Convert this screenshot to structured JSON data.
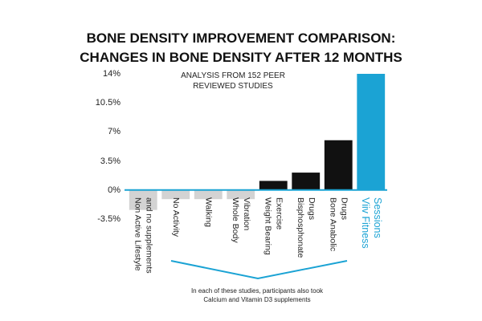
{
  "chart_data": {
    "type": "bar",
    "title": "BONE DENSITY IMPROVEMENT COMPARISON:\nCHANGES IN BONE DENSITY AFTER 12 MONTHS",
    "annotations": [
      "ANALYSIS FROM 152 PEER\nREVIEWED STUDIES",
      "In each of these studies, participants also took\nCalcium and Vitamin D3 supplements"
    ],
    "categories": [
      "Non Active Lifestyle\nand no supplements",
      "No Activity",
      "Walking",
      "Whole Body\nVibration",
      "Weight Bearing\nExercise",
      "Bisphosphonate\nDrugs",
      "Bone Anabolic\nDrugs",
      "Viiv Fitness\nSessions"
    ],
    "values": [
      -2.4,
      -1.1,
      -1.1,
      -1.1,
      1.1,
      2.1,
      6.0,
      14
    ],
    "colors": [
      "#d3d3d3",
      "#d3d3d3",
      "#d3d3d3",
      "#d3d3d3",
      "#111111",
      "#111111",
      "#111111",
      "#1ba3d4"
    ],
    "label_colors": [
      "#222222",
      "#222222",
      "#222222",
      "#222222",
      "#222222",
      "#222222",
      "#222222",
      "#1ba3d4"
    ],
    "ylim": [
      -3.5,
      14
    ],
    "yticks": [
      {
        "value": -3.5,
        "label": "-3.5%"
      },
      {
        "value": 0,
        "label": "0%"
      },
      {
        "value": 3.5,
        "label": "3.5%"
      },
      {
        "value": 7,
        "label": "7%"
      },
      {
        "value": 10.5,
        "label": "10.5%"
      },
      {
        "value": 14,
        "label": "14%"
      }
    ],
    "grid": false
  }
}
